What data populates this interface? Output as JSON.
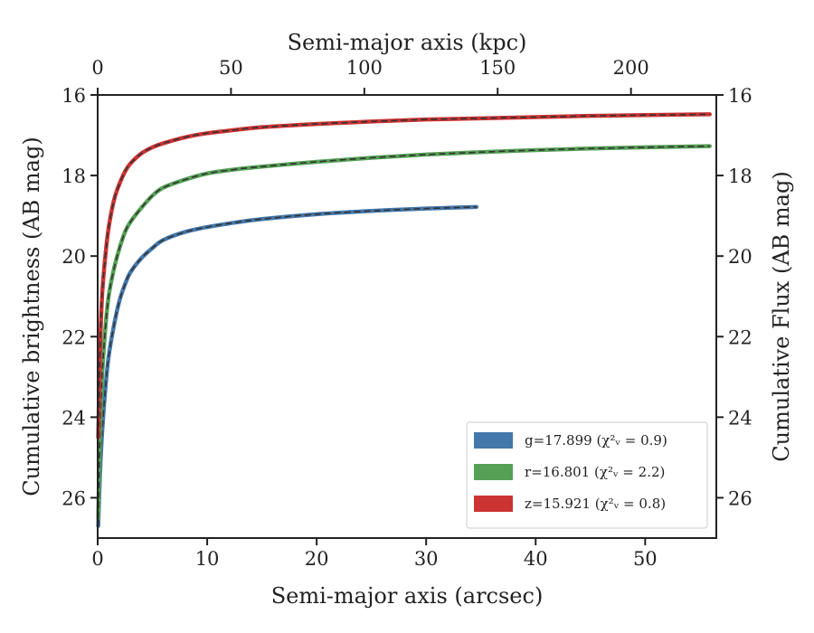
{
  "chart_data": {
    "type": "line",
    "xlabel": "Semi-major axis (arcsec)",
    "top_xlabel": "Semi-major axis (kpc)",
    "ylabel": "Cumulative brightness (AB mag)",
    "right_ylabel": "Cumulative Flux (AB mag)",
    "xlim": [
      0,
      56.5
    ],
    "top_xlim": [
      0,
      232
    ],
    "ylim": [
      27.0,
      16.0
    ],
    "y_inverted": true,
    "x_ticks": [
      0,
      10,
      20,
      30,
      40,
      50
    ],
    "top_x_ticks": [
      0,
      50,
      100,
      150,
      200
    ],
    "y_ticks": [
      16,
      18,
      20,
      22,
      24,
      26
    ],
    "grid": false,
    "legend_position": "lower-right",
    "series": [
      {
        "name": "g=17.899",
        "chi_label": "(χ²ᵥ = 0.9)",
        "color": "#4477aa",
        "x": [
          0.05,
          0.2,
          0.4,
          0.7,
          1.0,
          1.5,
          2.0,
          2.5,
          3.0,
          4.0,
          5.0,
          6.0,
          8.0,
          10.0,
          12.5,
          15.0,
          20.0,
          25.0,
          30.0,
          34.6
        ],
        "y": [
          26.7,
          25.5,
          24.4,
          23.3,
          22.5,
          21.7,
          21.1,
          20.7,
          20.4,
          20.05,
          19.8,
          19.6,
          19.4,
          19.28,
          19.17,
          19.08,
          18.96,
          18.88,
          18.82,
          18.78
        ]
      },
      {
        "name": "r=16.801",
        "chi_label": "(χ²ᵥ = 2.2)",
        "color": "#55a055",
        "x": [
          0.05,
          0.2,
          0.4,
          0.7,
          1.0,
          1.5,
          2.0,
          2.5,
          3.0,
          4.0,
          5.0,
          6.0,
          8.0,
          10.0,
          12.5,
          15.0,
          20.0,
          25.0,
          30.0,
          35.0,
          40.0,
          45.0,
          50.0,
          55.9
        ],
        "y": [
          26.5,
          24.5,
          23.0,
          21.8,
          21.0,
          20.3,
          19.8,
          19.4,
          19.15,
          18.8,
          18.5,
          18.3,
          18.1,
          17.95,
          17.85,
          17.78,
          17.66,
          17.56,
          17.48,
          17.42,
          17.37,
          17.33,
          17.3,
          17.27
        ]
      },
      {
        "name": "z=15.921",
        "chi_label": "(χ²ᵥ = 0.8)",
        "color": "#cc3333",
        "x": [
          0.05,
          0.2,
          0.4,
          0.7,
          1.0,
          1.5,
          2.0,
          2.5,
          3.0,
          4.0,
          5.0,
          6.0,
          8.0,
          10.0,
          12.5,
          15.0,
          20.0,
          25.0,
          30.0,
          35.0,
          40.0,
          45.0,
          50.0,
          55.9
        ],
        "y": [
          24.5,
          22.5,
          21.0,
          20.0,
          19.3,
          18.6,
          18.2,
          17.9,
          17.7,
          17.45,
          17.3,
          17.2,
          17.05,
          16.95,
          16.87,
          16.8,
          16.72,
          16.66,
          16.61,
          16.58,
          16.55,
          16.52,
          16.5,
          16.48
        ]
      }
    ]
  }
}
